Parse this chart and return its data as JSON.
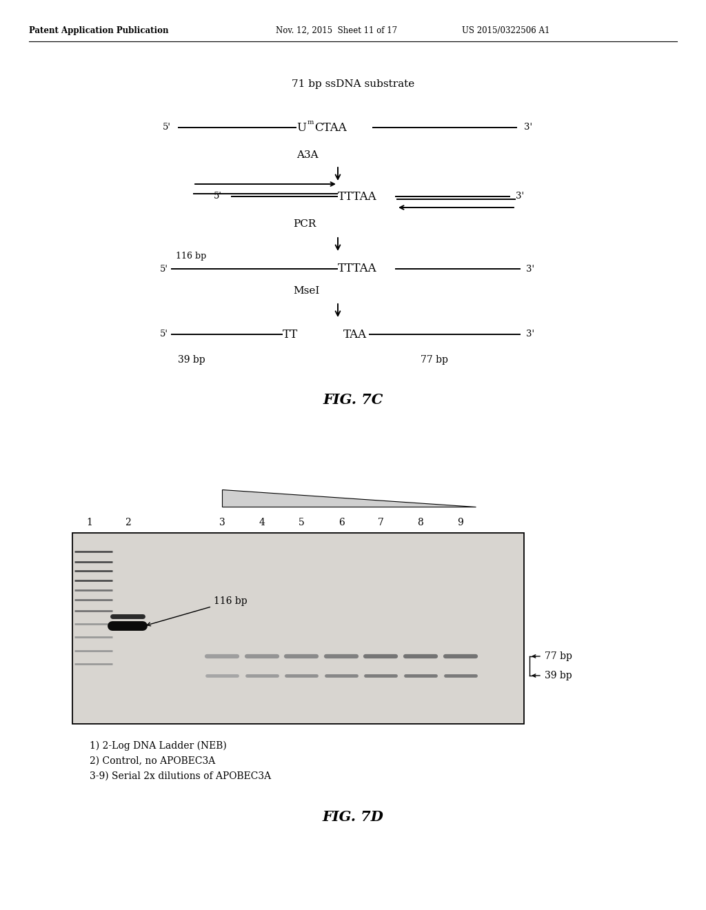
{
  "header_left": "Patent Application Publication",
  "header_mid": "Nov. 12, 2015  Sheet 11 of 17",
  "header_right": "US 2015/0322506 A1",
  "fig7c_title": "71 bp ssDNA substrate",
  "fig7c_label": "FIG. 7C",
  "fig7d_label": "FIG. 7D",
  "legend_lines": [
    "1) 2-Log DNA Ladder (NEB)",
    "2) Control, no APOBEC3A",
    "3-9) Serial 2x dilutions of APOBEC3A"
  ],
  "bg_color": "#ffffff"
}
